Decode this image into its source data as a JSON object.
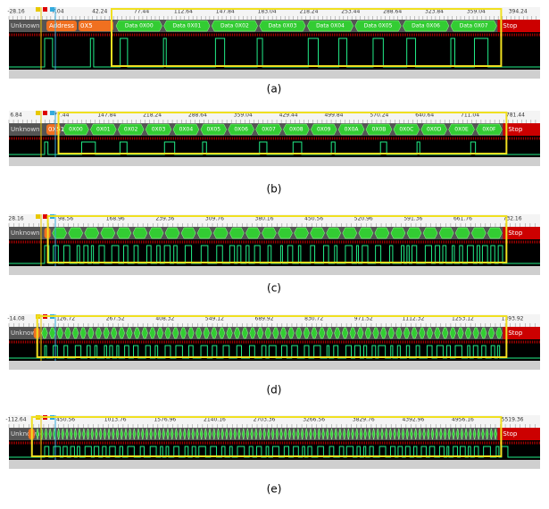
{
  "panels": [
    {
      "caption": "(a)",
      "ruler": [
        "-28.16",
        "7.04",
        "42.24",
        "77.44",
        "112.64",
        "147.84",
        "183.04",
        "218.24",
        "253.44",
        "288.64",
        "323.84",
        "359.04",
        "394.24"
      ],
      "decoder": {
        "unknown": "Unknown",
        "address": "Address",
        "address_value": "0X5",
        "segments": [
          "Data 0X00",
          "Data 0X01",
          "Data 0X02",
          "Data 0X03",
          "Data 0X04",
          "Data 0X05",
          "Data 0X06",
          "Data 0X07"
        ],
        "stop": "Stop"
      }
    },
    {
      "caption": "(b)",
      "ruler": [
        "6.84",
        "77.44",
        "147.84",
        "218.24",
        "288.64",
        "359.04",
        "429.44",
        "499.84",
        "570.24",
        "640.64",
        "711.04",
        "781.44"
      ],
      "decoder": {
        "unknown": "Unknown",
        "address_value": "0X51",
        "segments": [
          "0X00",
          "0X01",
          "0X02",
          "0X03",
          "0X04",
          "0X05",
          "0X06",
          "0X07",
          "0X08",
          "0X09",
          "0X0A",
          "0X0B",
          "0X0C",
          "0X0D",
          "0X0E",
          "0X0F"
        ],
        "stop": "Stop"
      }
    },
    {
      "caption": "(c)",
      "ruler": [
        "28.16",
        "98.56",
        "168.96",
        "239.36",
        "309.76",
        "380.16",
        "450.56",
        "520.96",
        "591.36",
        "661.76",
        "732.16"
      ],
      "decoder": {
        "unknown": "Unknown",
        "stop": "Stop"
      }
    },
    {
      "caption": "(d)",
      "ruler": [
        "-14.08",
        "126.72",
        "267.52",
        "408.32",
        "549.12",
        "689.92",
        "830.72",
        "971.52",
        "1112.32",
        "1253.12",
        "1393.92"
      ],
      "decoder": {
        "unknown": "Unknown",
        "stop": "Stop"
      }
    },
    {
      "caption": "(e)",
      "ruler": [
        "-112.64",
        "450.56",
        "1013.76",
        "1576.96",
        "2140.16",
        "2703.36",
        "3266.56",
        "3829.76",
        "4392.96",
        "4956.16",
        "5519.36"
      ],
      "decoder": {
        "unknown": "Unknown",
        "stop": "Stop"
      }
    }
  ]
}
